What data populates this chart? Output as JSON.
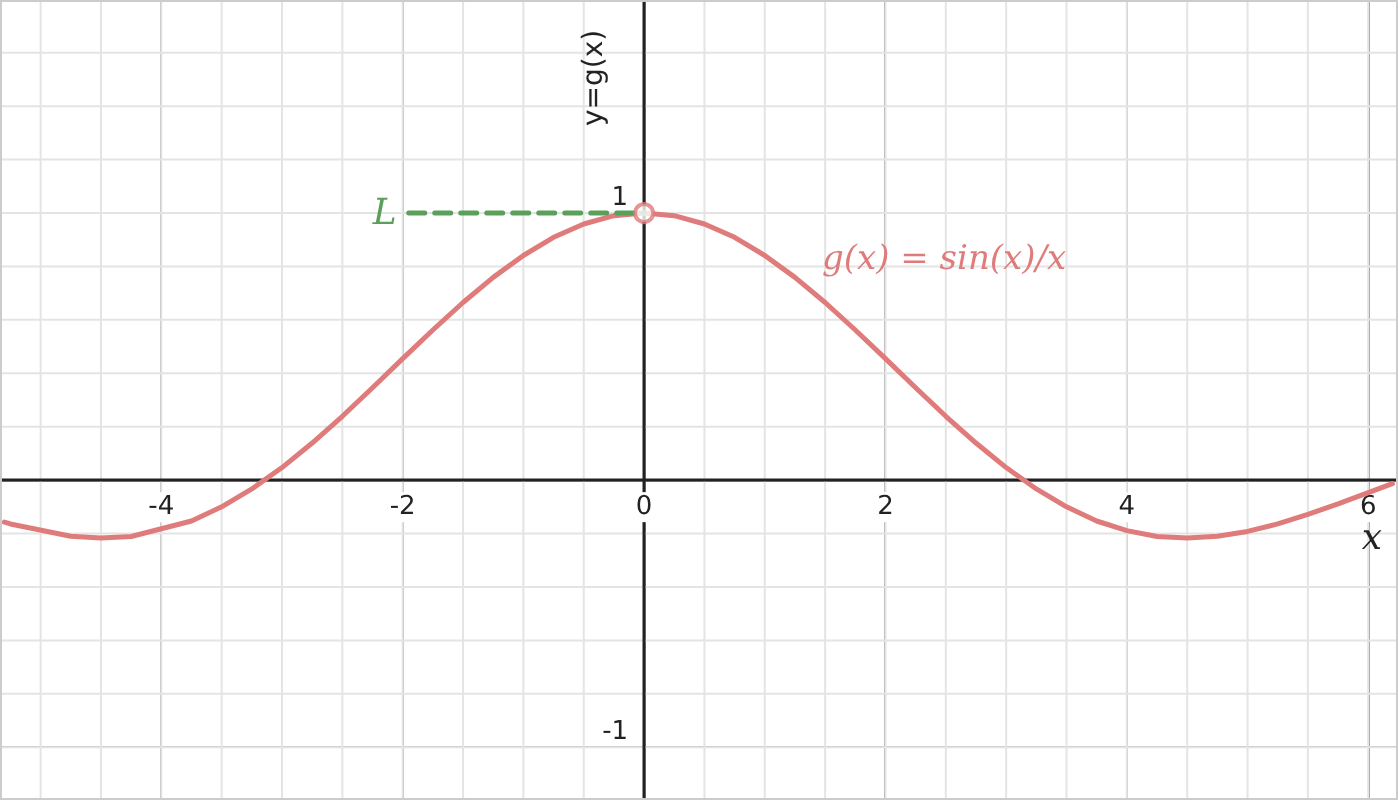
{
  "chart_data": {
    "type": "line",
    "xlabel": "x",
    "ylabel": "y=g(x)",
    "xlim": [
      -5.32,
      6.23
    ],
    "ylim": [
      -1.19,
      1.79
    ],
    "xticks": [
      -4,
      -2,
      0,
      2,
      4,
      6
    ],
    "yticks": [
      -1,
      {
        "value": 0,
        "label": null
      },
      1
    ],
    "grid": true,
    "marker": "none",
    "series": [
      {
        "name": "g(x) = sin(x)/x",
        "color": "#e07b7b",
        "line_style": "solid",
        "x": [
          -5.3,
          -5.25,
          -4.75,
          -4.5,
          -4.25,
          -3.75,
          -3.5,
          -3.25,
          -3,
          -2.75,
          -2.5,
          -2.25,
          -2,
          -1.75,
          -1.5,
          -1.25,
          -1,
          -0.75,
          -0.5,
          -0.25,
          0,
          0.25,
          0.5,
          0.75,
          1,
          1.25,
          1.5,
          1.75,
          2,
          2.25,
          2.5,
          2.75,
          3,
          3.25,
          3.5,
          3.75,
          4,
          4.25,
          4.5,
          4.75,
          5,
          5.25,
          5.5,
          5.75,
          6,
          6.2
        ],
        "values": [
          -0.157,
          -0.164,
          -0.21,
          -0.217,
          -0.211,
          -0.153,
          -0.1,
          -0.033,
          0.047,
          0.139,
          0.239,
          0.346,
          0.455,
          0.562,
          0.665,
          0.759,
          0.841,
          0.909,
          0.959,
          0.99,
          1,
          0.99,
          0.959,
          0.909,
          0.841,
          0.759,
          0.665,
          0.562,
          0.455,
          0.346,
          0.239,
          0.139,
          0.047,
          -0.033,
          -0.1,
          -0.153,
          -0.189,
          -0.211,
          -0.217,
          -0.21,
          -0.192,
          -0.164,
          -0.128,
          -0.089,
          -0.047,
          -0.013
        ]
      },
      {
        "name": "L",
        "color": "#5aa05a",
        "line_style": "dashed",
        "x": [
          -1.95,
          0
        ],
        "values": [
          1,
          1
        ]
      },
      {
        "type": "scatter",
        "color": "#e07b7b",
        "marker": "circle",
        "x": [
          0
        ],
        "values": [
          1
        ]
      }
    ]
  }
}
